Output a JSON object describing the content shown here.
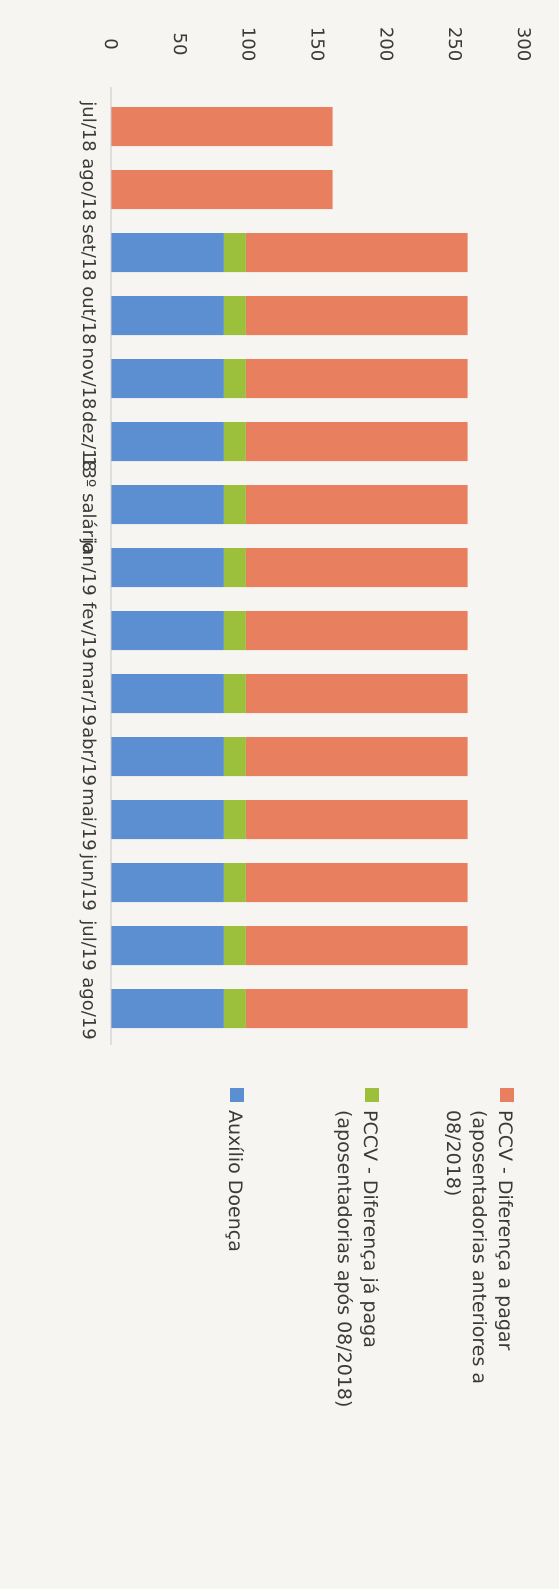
{
  "chart_data": {
    "type": "bar",
    "stacked": true,
    "orientation": "vertical",
    "displayed_rotated": "90deg clockwise",
    "categories": [
      "jul/18",
      "ago/18",
      "set/18",
      "out/18",
      "nov/18",
      "dez/18",
      "13º salário",
      "jan/19",
      "fev/19",
      "mar/19",
      "abr/19",
      "mai/19",
      "jun/19",
      "jul/19",
      "ago/19"
    ],
    "series": [
      {
        "name": "Auxílio Doença",
        "color": "#5b8fd1",
        "values": [
          0,
          0,
          82,
          82,
          82,
          82,
          82,
          82,
          82,
          82,
          82,
          82,
          82,
          82,
          82
        ]
      },
      {
        "name": "PCCV - Diferença já paga (aposentadorias após 08/2018)",
        "color": "#9cbf3c",
        "values": [
          0,
          0,
          16,
          16,
          16,
          16,
          16,
          16,
          16,
          16,
          16,
          16,
          16,
          16,
          16
        ]
      },
      {
        "name": "PCCV - Diferença a pagar (aposentadorias anteriores a 08/2018)",
        "color": "#e8805f",
        "values": [
          161,
          161,
          161,
          161,
          161,
          161,
          161,
          161,
          161,
          161,
          161,
          161,
          161,
          161,
          161
        ]
      }
    ],
    "yticks": [
      0,
      50,
      100,
      150,
      200,
      250,
      300
    ],
    "ylim": [
      0,
      300
    ],
    "grid": false,
    "legend_position": "right",
    "title": "",
    "xlabel": "",
    "ylabel": ""
  },
  "legend": [
    {
      "lines": [
        "PCCV - Diferença a pagar",
        "(aposentadorias anteriores a",
        "08/2018)"
      ],
      "color": "#e8805f"
    },
    {
      "lines": [
        "PCCV - Diferença já paga",
        "(aposentadorias após 08/2018)"
      ],
      "color": "#9cbf3c"
    },
    {
      "lines": [
        "Auxílio Doença"
      ],
      "color": "#5b8fd1"
    }
  ]
}
